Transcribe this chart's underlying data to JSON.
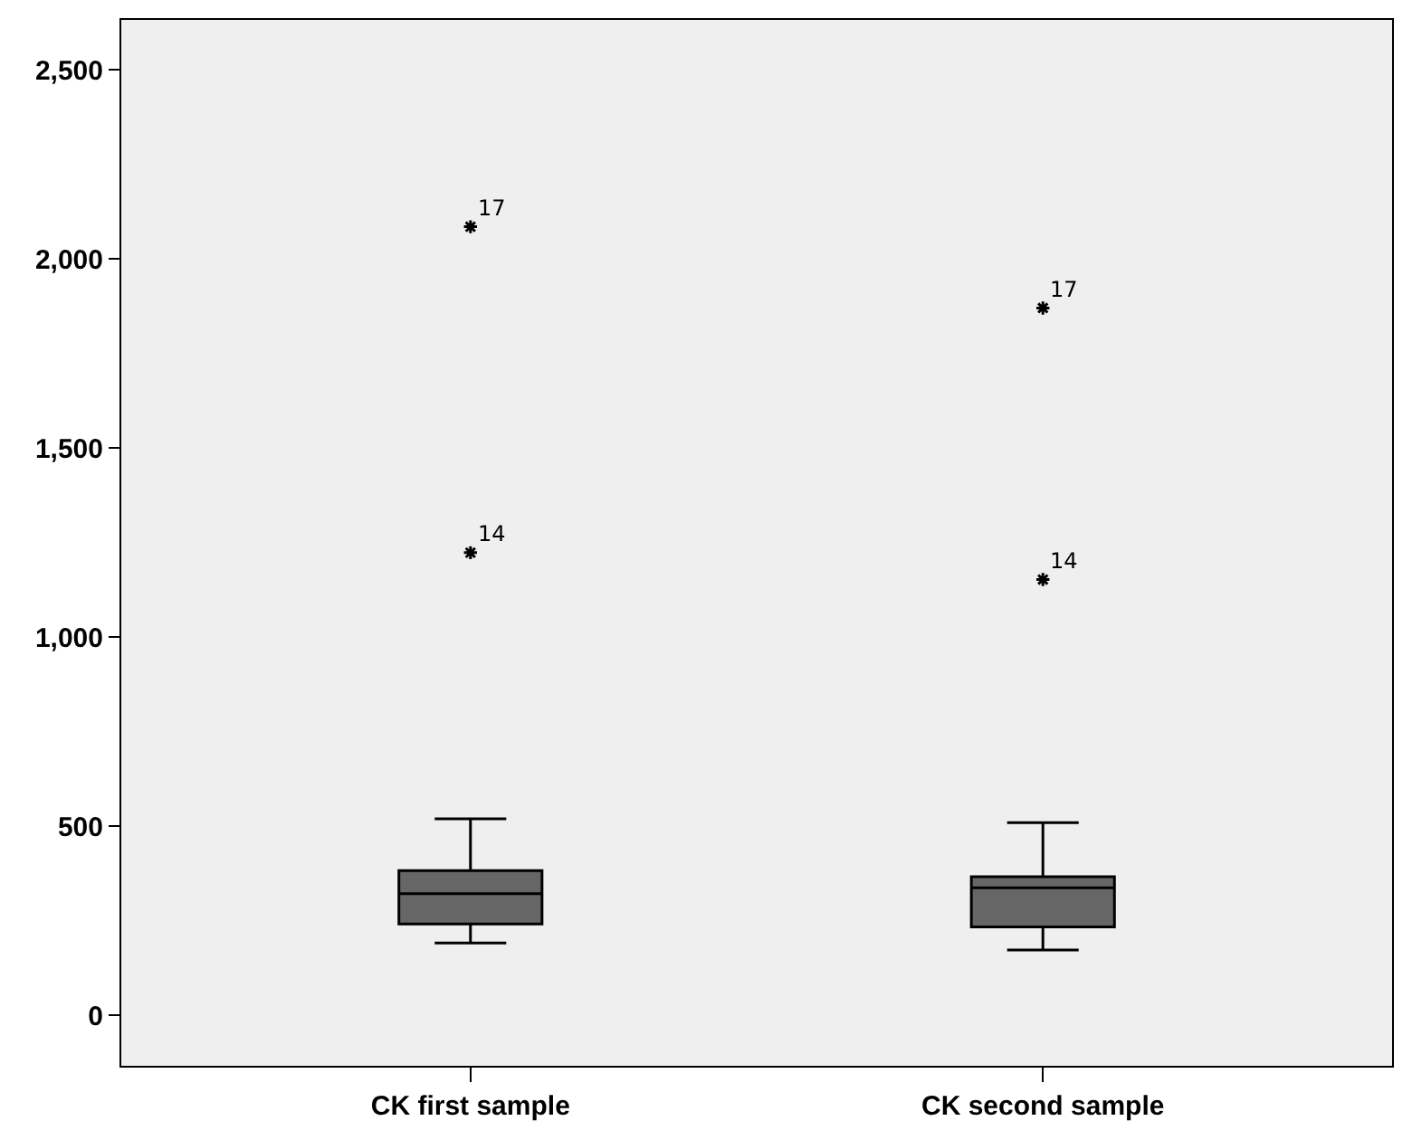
{
  "chart_data": {
    "type": "box",
    "categories": [
      "CK first sample",
      "CK second sample"
    ],
    "boxes": [
      {
        "low": 191,
        "q1": 241,
        "median": 321,
        "q3": 382,
        "high": 519,
        "outliers": [
          1223,
          2085
        ]
      },
      {
        "low": 172,
        "q1": 233,
        "median": 337,
        "q3": 366,
        "high": 509,
        "outliers": [
          1152,
          1870
        ]
      }
    ],
    "color": "#666666",
    "ylim": [
      -134,
      2632
    ],
    "yticks": [
      0,
      500,
      {
        "value": 1000,
        "label": "1,000"
      },
      {
        "value": 1500,
        "label": "1,500"
      },
      {
        "value": 2000,
        "label": "2,000"
      },
      {
        "value": 2500,
        "label": "2,500"
      }
    ],
    "annotations": [
      "14",
      "17",
      "14",
      "17"
    ],
    "marker": "star",
    "grid": false
  }
}
